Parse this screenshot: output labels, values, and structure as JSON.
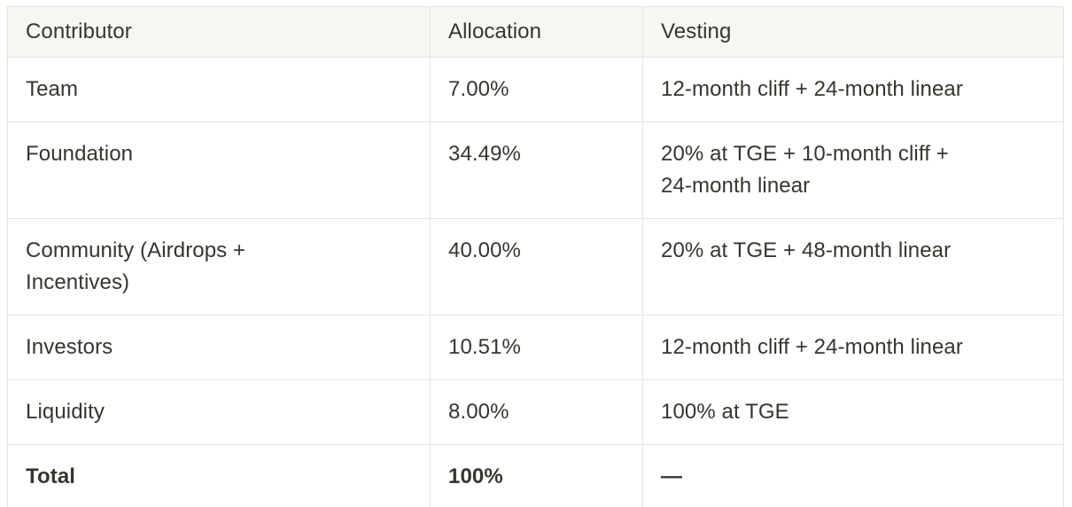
{
  "table": {
    "columns": [
      {
        "key": "contributor",
        "label": "Contributor"
      },
      {
        "key": "allocation",
        "label": "Allocation"
      },
      {
        "key": "vesting",
        "label": "Vesting"
      }
    ],
    "rows": [
      {
        "contributor": "Team",
        "allocation": "7.00%",
        "vesting": "12-month cliff + 24-month linear",
        "bold": false
      },
      {
        "contributor": "Foundation",
        "allocation": "34.49%",
        "vesting": "20% at TGE + 10-month cliff +\n24-month linear",
        "bold": false
      },
      {
        "contributor": "Community (Airdrops +\nIncentives)",
        "allocation": "40.00%",
        "vesting": "20% at TGE + 48-month linear",
        "bold": false
      },
      {
        "contributor": "Investors",
        "allocation": "10.51%",
        "vesting": "12-month cliff + 24-month linear",
        "bold": false
      },
      {
        "contributor": "Liquidity",
        "allocation": "8.00%",
        "vesting": "100% at TGE",
        "bold": false
      },
      {
        "contributor": "Total",
        "allocation": "100%",
        "vesting": "—",
        "bold": true
      }
    ],
    "colors": {
      "background": "#ffffff",
      "header_bg": "#f7f6f3",
      "border": "#e5e4e1",
      "text": "#37352f"
    }
  }
}
